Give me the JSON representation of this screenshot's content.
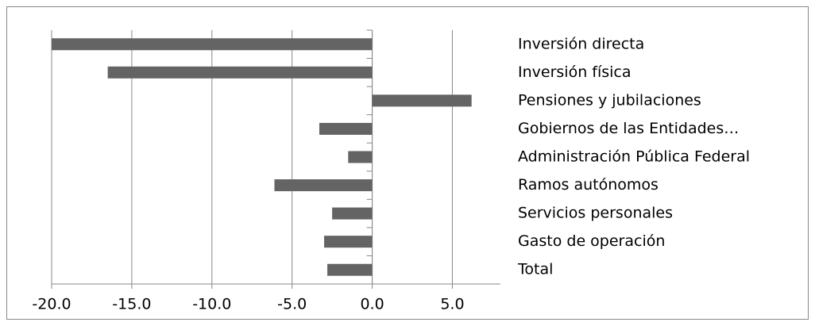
{
  "chart_data": {
    "type": "bar",
    "orientation": "horizontal",
    "categories": [
      "Inversión directa",
      "Inversión física",
      "Pensiones y jubilaciones",
      "Gobiernos de las Entidades…",
      "Administración Pública Federal",
      "Ramos autónomos",
      "Servicios personales",
      "Gasto de operación",
      "Total"
    ],
    "values": [
      -20.0,
      -16.5,
      6.2,
      -3.3,
      -1.5,
      -6.1,
      -2.5,
      -3.0,
      -2.8
    ],
    "color": "#646464",
    "xlim": [
      -20,
      8
    ],
    "xticks": [
      {
        "value": -20,
        "label": "-20.0"
      },
      {
        "value": -15,
        "label": "-15.0"
      },
      {
        "value": -10,
        "label": "-10.0"
      },
      {
        "value": -5,
        "label": "-5.0"
      },
      {
        "value": 0,
        "label": "0.0"
      },
      {
        "value": 5,
        "label": "5.0"
      }
    ],
    "grid": true
  }
}
